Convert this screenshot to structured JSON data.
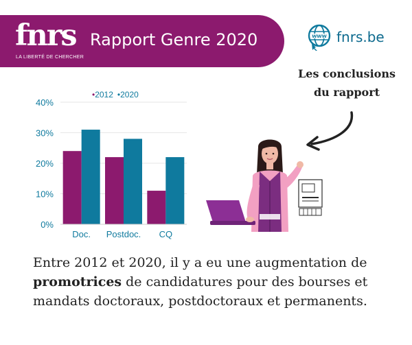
{
  "header": {
    "logo_text": "fnrs",
    "logo_tagline": "LA LIBERTÉ DE CHERCHER",
    "title": "Rapport Genre 2020",
    "website": "fnrs.be",
    "globe_icon_text": "WWW"
  },
  "callout": {
    "line1": "Les conclusions",
    "line2": "du rapport"
  },
  "colors": {
    "brand": "#8c1a6e",
    "teal": "#0f7a9e",
    "text": "#222222"
  },
  "chart_data": {
    "type": "bar",
    "categories": [
      "Doc.",
      "Postdoc.",
      "CQ"
    ],
    "series": [
      {
        "name": "2012",
        "values": [
          24,
          22,
          11
        ],
        "color": "#8c1a6e"
      },
      {
        "name": "2020",
        "values": [
          31,
          28,
          22
        ],
        "color": "#0f7a9e"
      }
    ],
    "y_ticks": [
      "0%",
      "10%",
      "20%",
      "30%",
      "40%"
    ],
    "ylim": [
      0,
      40
    ],
    "legend_position": "top",
    "grid": true
  },
  "paragraph": {
    "part1": "Entre 2012 et 2020, il y a eu une augmentation de ",
    "bold": "promotrices",
    "part2": " de candidatures pour des bourses et mandats doctoraux, postdoctoraux et permanents."
  }
}
